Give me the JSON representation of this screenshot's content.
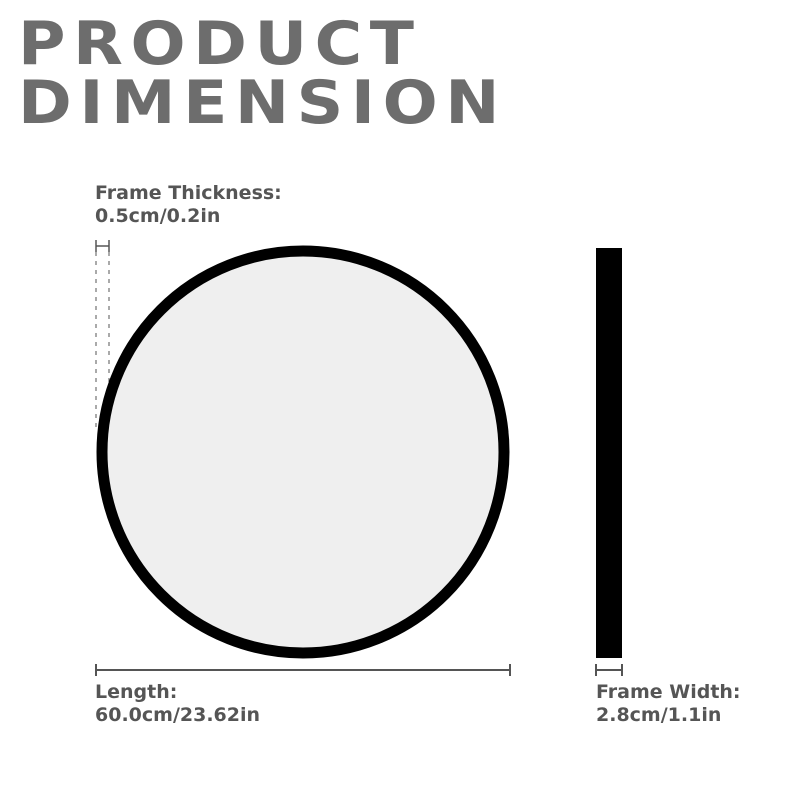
{
  "title": {
    "line1": "PRODUCT",
    "line2": "DIMENSION"
  },
  "frame_thickness": {
    "label": "Frame Thickness:",
    "value": "0.5cm/0.2in"
  },
  "length": {
    "label": "Length:",
    "value": "60.0cm/23.62in"
  },
  "frame_width": {
    "label": "Frame Width:",
    "value": "2.8cm/1.1in"
  },
  "colors": {
    "title": "#6d6d6d",
    "text": "#555555",
    "frame": "#000000",
    "mirror": "#efefef"
  }
}
